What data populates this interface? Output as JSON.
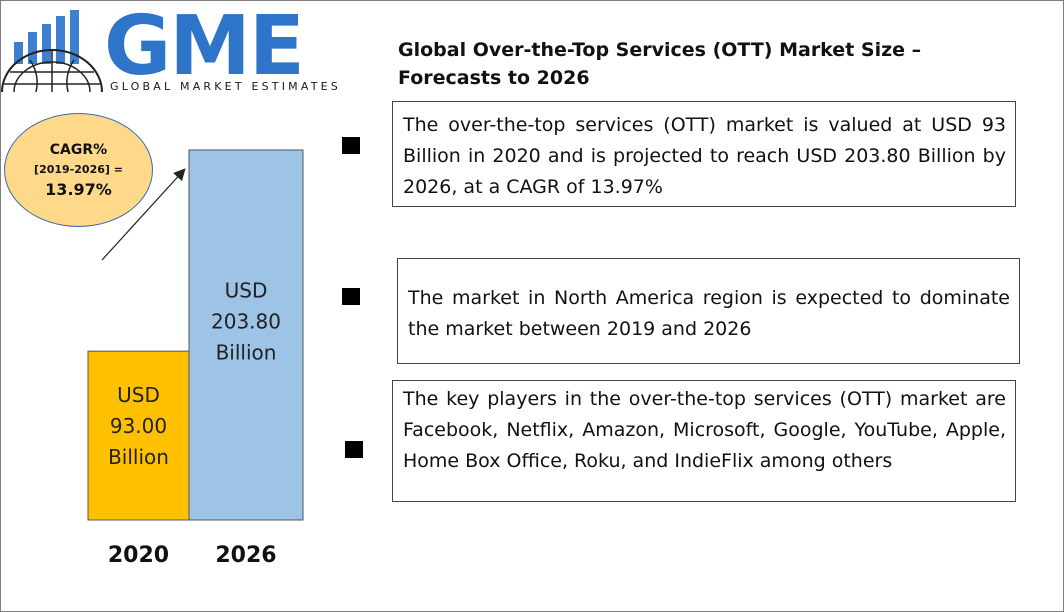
{
  "logo": {
    "wordmark": "GME",
    "tagline": "GLOBAL MARKET ESTIMATES",
    "color": "#2e74c9"
  },
  "title": "Global Over-the-Top Services (OTT) Market Size – Forecasts to 2026",
  "cagr": {
    "label": "CAGR%",
    "period": "[2019-2026] =",
    "value": "13.97%",
    "fill": "#fed98a"
  },
  "chart_data": {
    "type": "bar",
    "categories": [
      "2020",
      "2026"
    ],
    "values": [
      93.0,
      203.8
    ],
    "bar_labels": [
      [
        "USD",
        "93.00",
        "Billion"
      ],
      [
        "USD",
        "203.80",
        "Billion"
      ]
    ],
    "colors": [
      "#ffc000",
      "#9dc3e6"
    ],
    "title": "",
    "xlabel": "",
    "ylabel": "",
    "ylim": [
      0,
      203.8
    ],
    "grid": false
  },
  "info_boxes": [
    "The over-the-top services (OTT) market is valued at USD 93 Billion in 2020 and is projected to reach USD 203.80 Billion by 2026, at a CAGR of 13.97%",
    "The market in North America region is expected to dominate the market between 2019 and 2026",
    "The key players in the over-the-top services (OTT) market are Facebook, Netflix, Amazon, Microsoft, Google, YouTube, Apple, Home Box Office, Roku, and IndieFlix among others"
  ]
}
